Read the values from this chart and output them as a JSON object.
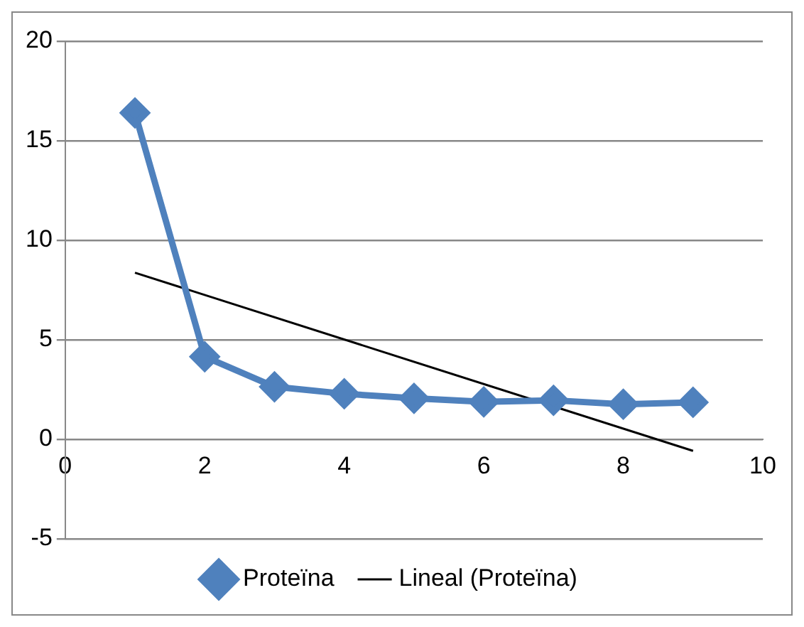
{
  "chart_data": {
    "type": "line",
    "x": [
      1,
      2,
      3,
      4,
      5,
      6,
      7,
      8,
      9
    ],
    "series": [
      {
        "name": "Proteïna",
        "color": "#4f81bd",
        "values": [
          16.4,
          4.15,
          2.64,
          2.29,
          2.06,
          1.88,
          1.96,
          1.76,
          1.86
        ],
        "marker": "diamond"
      },
      {
        "name": "Lineal (Proteïna)",
        "color": "#000000",
        "x": [
          1,
          9
        ],
        "values": [
          8.37,
          -0.58
        ],
        "marker": "none"
      }
    ],
    "xlim": [
      0,
      10
    ],
    "xticks": [
      0,
      2,
      4,
      6,
      8,
      10
    ],
    "ylim": [
      -5,
      20
    ],
    "yticks": [
      -5,
      0,
      5,
      10,
      15,
      20
    ],
    "grid": "y",
    "legend": "bottom"
  }
}
